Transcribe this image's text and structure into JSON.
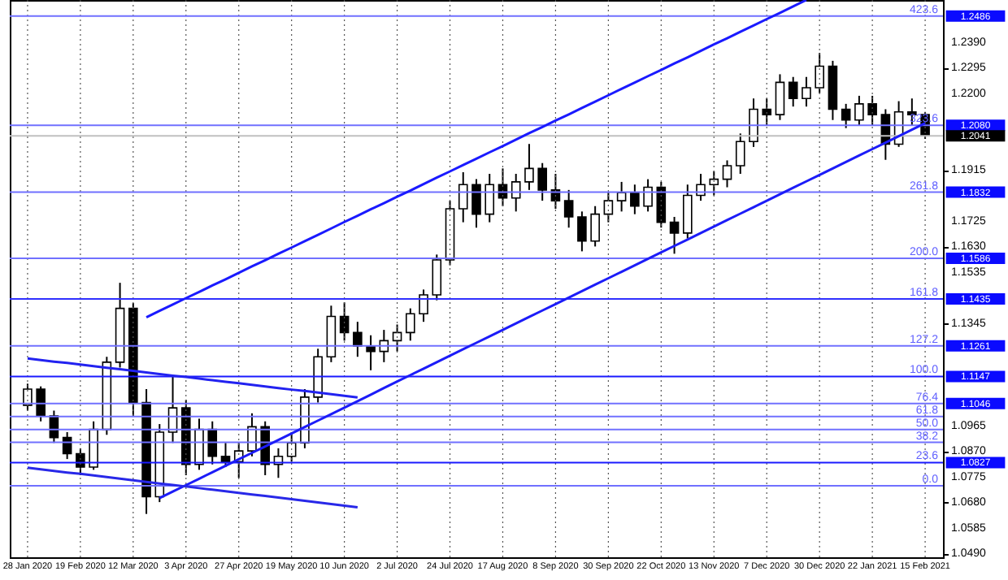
{
  "chart_data": {
    "type": "candlestick",
    "categories": [
      "28 Jan 2020",
      null,
      null,
      null,
      "19 Feb 2020",
      null,
      null,
      null,
      "12 Mar 2020",
      null,
      null,
      null,
      "3 Apr 2020",
      null,
      null,
      null,
      "27 Apr 2020",
      null,
      null,
      null,
      "19 May 2020",
      null,
      null,
      null,
      "10 Jun 2020",
      null,
      null,
      null,
      "2 Jul 2020",
      null,
      null,
      null,
      "24 Jul 2020",
      null,
      null,
      null,
      "17 Aug 2020",
      null,
      null,
      null,
      "8 Sep 2020",
      null,
      null,
      null,
      "30 Sep 2020",
      null,
      null,
      null,
      "22 Oct 2020",
      null,
      null,
      null,
      "13 Nov 2020",
      null,
      null,
      null,
      "7 Dec 2020",
      null,
      null,
      null,
      "30 Dec 2020",
      null,
      null,
      null,
      "22 Jan 2021",
      null,
      null,
      null,
      "15 Feb 2021"
    ],
    "ohlc": [
      [
        1.104,
        1.112,
        1.102,
        1.11
      ],
      [
        1.11,
        1.111,
        1.098,
        1.1
      ],
      [
        1.1,
        1.102,
        1.09,
        1.092
      ],
      [
        1.092,
        1.094,
        1.084,
        1.086
      ],
      [
        1.086,
        1.088,
        1.078,
        1.081
      ],
      [
        1.081,
        1.098,
        1.08,
        1.095
      ],
      [
        1.095,
        1.122,
        1.093,
        1.12
      ],
      [
        1.12,
        1.1495,
        1.118,
        1.14
      ],
      [
        1.14,
        1.142,
        1.1,
        1.105
      ],
      [
        1.105,
        1.11,
        1.0636,
        1.07
      ],
      [
        1.07,
        1.097,
        1.068,
        1.094
      ],
      [
        1.094,
        1.1147,
        1.09,
        1.103
      ],
      [
        1.103,
        1.106,
        1.078,
        1.082
      ],
      [
        1.082,
        1.099,
        1.08,
        1.095
      ],
      [
        1.095,
        1.098,
        1.082,
        1.085
      ],
      [
        1.085,
        1.09,
        1.081,
        1.083
      ],
      [
        1.083,
        1.09,
        1.077,
        1.087
      ],
      [
        1.087,
        1.101,
        1.085,
        1.096
      ],
      [
        1.096,
        1.098,
        1.078,
        1.082
      ],
      [
        1.082,
        1.088,
        1.077,
        1.085
      ],
      [
        1.085,
        1.094,
        1.083,
        1.09
      ],
      [
        1.09,
        1.11,
        1.088,
        1.107
      ],
      [
        1.107,
        1.125,
        1.105,
        1.122
      ],
      [
        1.122,
        1.141,
        1.12,
        1.137
      ],
      [
        1.137,
        1.1422,
        1.128,
        1.131
      ],
      [
        1.131,
        1.135,
        1.122,
        1.126
      ],
      [
        1.126,
        1.13,
        1.117,
        1.124
      ],
      [
        1.124,
        1.132,
        1.12,
        1.128
      ],
      [
        1.128,
        1.134,
        1.124,
        1.131
      ],
      [
        1.131,
        1.14,
        1.128,
        1.138
      ],
      [
        1.138,
        1.147,
        1.135,
        1.145
      ],
      [
        1.145,
        1.16,
        1.143,
        1.158
      ],
      [
        1.158,
        1.18,
        1.156,
        1.177
      ],
      [
        1.177,
        1.1906,
        1.172,
        1.186
      ],
      [
        1.186,
        1.188,
        1.17,
        1.175
      ],
      [
        1.175,
        1.19,
        1.172,
        1.186
      ],
      [
        1.186,
        1.192,
        1.178,
        1.181
      ],
      [
        1.181,
        1.19,
        1.176,
        1.187
      ],
      [
        1.187,
        1.2011,
        1.184,
        1.192
      ],
      [
        1.192,
        1.194,
        1.18,
        1.184
      ],
      [
        1.184,
        1.19,
        1.177,
        1.18
      ],
      [
        1.18,
        1.184,
        1.17,
        1.174
      ],
      [
        1.174,
        1.176,
        1.1612,
        1.165
      ],
      [
        1.165,
        1.178,
        1.163,
        1.175
      ],
      [
        1.175,
        1.183,
        1.172,
        1.18
      ],
      [
        1.18,
        1.187,
        1.176,
        1.183
      ],
      [
        1.183,
        1.186,
        1.175,
        1.178
      ],
      [
        1.178,
        1.188,
        1.176,
        1.185
      ],
      [
        1.185,
        1.187,
        1.17,
        1.172
      ],
      [
        1.172,
        1.174,
        1.1603,
        1.168
      ],
      [
        1.168,
        1.186,
        1.166,
        1.182
      ],
      [
        1.182,
        1.19,
        1.18,
        1.186
      ],
      [
        1.186,
        1.191,
        1.182,
        1.188
      ],
      [
        1.188,
        1.195,
        1.185,
        1.193
      ],
      [
        1.193,
        1.205,
        1.19,
        1.202
      ],
      [
        1.202,
        1.218,
        1.2,
        1.214
      ],
      [
        1.214,
        1.218,
        1.208,
        1.212
      ],
      [
        1.212,
        1.227,
        1.21,
        1.224
      ],
      [
        1.224,
        1.226,
        1.215,
        1.218
      ],
      [
        1.218,
        1.226,
        1.215,
        1.222
      ],
      [
        1.222,
        1.2349,
        1.22,
        1.23
      ],
      [
        1.23,
        1.232,
        1.21,
        1.214
      ],
      [
        1.214,
        1.216,
        1.207,
        1.21
      ],
      [
        1.21,
        1.219,
        1.208,
        1.216
      ],
      [
        1.216,
        1.219,
        1.208,
        1.212
      ],
      [
        1.212,
        1.214,
        1.1952,
        1.201
      ],
      [
        1.201,
        1.217,
        1.2,
        1.213
      ],
      [
        1.213,
        1.218,
        1.208,
        1.212
      ],
      [
        1.212,
        1.213,
        1.203,
        1.2041
      ]
    ],
    "ylim": [
      1.0475,
      1.2546
    ],
    "yticks": [
      {
        "value": 1.049,
        "label": "1.0490"
      },
      {
        "value": 1.0585,
        "label": "1.0585"
      },
      {
        "value": 1.068,
        "label": "1.0680"
      },
      {
        "value": 1.0775,
        "label": "1.0775"
      },
      {
        "value": 1.087,
        "label": "1.0870"
      },
      {
        "value": 1.0965,
        "label": "1.0965"
      },
      {
        "value": 1.1345,
        "label": "1.1345"
      },
      {
        "value": 1.1535,
        "label": "1.1535"
      },
      {
        "value": 1.163,
        "label": "1.1630"
      },
      {
        "value": 1.1725,
        "label": "1.1725"
      },
      {
        "value": 1.1915,
        "label": "1.1915"
      },
      {
        "value": 1.22,
        "label": "1.2200"
      },
      {
        "value": 1.2295,
        "label": "1.2295"
      },
      {
        "value": 1.239,
        "label": "1.2390"
      }
    ],
    "grid": "x",
    "series": [
      {
        "type": "line",
        "color": "#1a1aff",
        "values": [
          null,
          null,
          null,
          null,
          null,
          null,
          null,
          null,
          null,
          1.1367,
          1.1391,
          1.1414,
          1.1438,
          1.1461,
          1.1485,
          1.1508,
          1.1532,
          1.1556,
          1.1579,
          1.1603,
          1.1626,
          1.165,
          1.1673,
          1.1697,
          1.1721,
          1.1744,
          1.1768,
          1.1791,
          1.1815,
          1.1838,
          1.1862,
          1.1886,
          1.1909,
          1.1933,
          1.1956,
          1.198,
          1.2003,
          1.2027,
          1.2051,
          1.2074,
          1.2098,
          1.2121,
          1.2145,
          1.2168,
          1.2192,
          1.2216,
          1.2239,
          1.2263,
          1.2286,
          1.231,
          1.2333,
          1.2357,
          1.2381,
          1.2404,
          1.2428,
          1.2451,
          1.2475,
          1.2498,
          1.2522,
          1.2546,
          null,
          null,
          null,
          null,
          null,
          null,
          null,
          null,
          null
        ]
      },
      {
        "type": "line",
        "color": "#1c1cf8",
        "values": [
          null,
          null,
          null,
          null,
          null,
          null,
          null,
          null,
          null,
          null,
          1.0695,
          1.0719,
          1.0743,
          1.0767,
          1.0791,
          1.0815,
          1.0839,
          1.0863,
          1.0887,
          1.0911,
          1.0935,
          1.0959,
          1.0983,
          1.1007,
          1.1031,
          1.1055,
          1.1079,
          1.1104,
          1.1128,
          1.1152,
          1.1176,
          1.12,
          1.1224,
          1.1248,
          1.1272,
          1.1296,
          1.132,
          1.1344,
          1.1368,
          1.1392,
          1.1416,
          1.144,
          1.1464,
          1.1488,
          1.1512,
          1.1536,
          1.156,
          1.1584,
          1.1608,
          1.1632,
          1.1656,
          1.168,
          1.1704,
          1.1728,
          1.1752,
          1.1776,
          1.18,
          1.1824,
          1.1848,
          1.1872,
          1.1896,
          1.192,
          1.1944,
          1.1968,
          1.1992,
          1.2016,
          1.204,
          1.2064,
          1.2088
        ]
      },
      {
        "type": "line",
        "color": "#2222f0",
        "values": [
          1.1214,
          1.1208,
          1.1202,
          1.1197,
          1.1191,
          1.1185,
          1.1179,
          1.1174,
          1.1168,
          1.1162,
          1.1156,
          1.115,
          1.1145,
          1.1139,
          1.1133,
          1.1127,
          1.1122,
          1.1116,
          1.111,
          1.1104,
          1.1098,
          1.1093,
          1.1087,
          1.1081,
          1.1075,
          1.1069,
          null,
          null,
          null,
          null,
          null,
          null,
          null,
          null,
          null,
          null,
          null,
          null,
          null,
          null,
          null,
          null,
          null,
          null,
          null,
          null,
          null,
          null,
          null,
          null,
          null,
          null,
          null,
          null,
          null,
          null,
          null,
          null,
          null,
          null,
          null,
          null,
          null,
          null,
          null,
          null,
          null,
          null,
          null
        ]
      },
      {
        "type": "line",
        "color": "#2828e8",
        "values": [
          1.0808,
          1.0802,
          1.0796,
          1.079,
          1.0785,
          1.0779,
          1.0773,
          1.0767,
          1.0761,
          1.0755,
          1.0749,
          1.0744,
          1.0738,
          1.0732,
          1.0726,
          1.072,
          1.0714,
          1.0708,
          1.0703,
          1.0697,
          1.0691,
          1.0685,
          1.0679,
          1.0673,
          1.0667,
          1.0661,
          null,
          null,
          null,
          null,
          null,
          null,
          null,
          null,
          null,
          null,
          null,
          null,
          null,
          null,
          null,
          null,
          null,
          null,
          null,
          null,
          null,
          null,
          null,
          null,
          null,
          null,
          null,
          null,
          null,
          null,
          null,
          null,
          null,
          null,
          null,
          null,
          null,
          null,
          null,
          null,
          null,
          null,
          null
        ]
      }
    ],
    "ref_lines": [
      {
        "axis": "y",
        "value": 1.2486,
        "label": "1.2486",
        "color": "#7070ff"
      },
      {
        "axis": "y",
        "value": 1.208,
        "label": "1.2080",
        "color": "#7070ff"
      },
      {
        "axis": "y",
        "value": 1.1832,
        "label": "1.1832",
        "color": "#7070ff"
      },
      {
        "axis": "y",
        "value": 1.1586,
        "label": "1.1586",
        "color": "#7070ff"
      },
      {
        "axis": "y",
        "value": 1.1435,
        "label": "1.1435",
        "color": "#3030ff"
      },
      {
        "axis": "y",
        "value": 1.1261,
        "label": "1.1261",
        "color": "#7070ff"
      },
      {
        "axis": "y",
        "value": 1.1147,
        "label": "1.1147",
        "color": "#1a1aff"
      },
      {
        "axis": "y",
        "value": 1.1046,
        "label": "1.1046",
        "color": "#7070ff"
      },
      {
        "axis": "y",
        "value": 1.0998,
        "color": "#7070ff"
      },
      {
        "axis": "y",
        "value": 1.095,
        "color": "#7070ff"
      },
      {
        "axis": "y",
        "value": 1.0902,
        "color": "#7070ff"
      },
      {
        "axis": "y",
        "value": 1.0827,
        "label": "1.0827",
        "color": "#1a1aff"
      },
      {
        "axis": "y",
        "value": 1.0741,
        "color": "#7070ff"
      },
      {
        "axis": "y",
        "value": 1.2041,
        "label": "1.2041",
        "color": "#c0c0c0"
      }
    ],
    "annotations": [
      {
        "text": "423.6",
        "y": 1.2486
      },
      {
        "text": "323.6",
        "y": 1.208
      },
      {
        "text": "261.8",
        "y": 1.1832
      },
      {
        "text": "200.0",
        "y": 1.1586
      },
      {
        "text": "161.8",
        "y": 1.1435
      },
      {
        "text": "127.2",
        "y": 1.1261
      },
      {
        "text": "100.0",
        "y": 1.1147
      },
      {
        "text": "76.4",
        "y": 1.1046
      },
      {
        "text": "61.8",
        "y": 1.0998
      },
      {
        "text": "50.0",
        "y": 1.095
      },
      {
        "text": "38.2",
        "y": 1.0902
      },
      {
        "text": "23.6",
        "y": 1.0827
      },
      {
        "text": "0.0",
        "y": 1.0741
      }
    ]
  }
}
